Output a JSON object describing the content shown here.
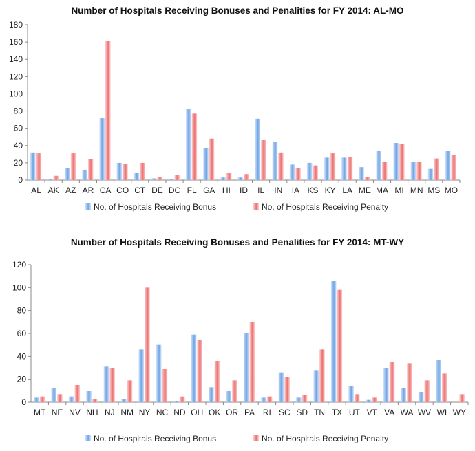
{
  "colors": {
    "bonus": "#6fa4e6",
    "penalty": "#ee6f6f",
    "axis": "#888888",
    "grid": "#d9d9d9"
  },
  "chart_data": [
    {
      "type": "bar",
      "title": "Number of Hospitals Receiving Bonuses and Penalities for FY 2014: AL-MO",
      "categories": [
        "AL",
        "AK",
        "AZ",
        "AR",
        "CA",
        "CO",
        "CT",
        "DE",
        "DC",
        "FL",
        "GA",
        "HI",
        "ID",
        "IL",
        "IN",
        "IA",
        "KS",
        "KY",
        "LA",
        "ME",
        "MA",
        "MI",
        "MN",
        "MS",
        "MO"
      ],
      "series": [
        {
          "name": "No. of Hospitals Receiving Bonus",
          "values": [
            32,
            1,
            14,
            12,
            72,
            20,
            8,
            2,
            1,
            82,
            37,
            3,
            3,
            71,
            44,
            18,
            20,
            26,
            26,
            15,
            34,
            43,
            21,
            13,
            34
          ]
        },
        {
          "name": "No. of Hospitals Receiving Penalty",
          "values": [
            31,
            5,
            31,
            24,
            161,
            19,
            20,
            4,
            6,
            77,
            48,
            8,
            7,
            47,
            32,
            14,
            17,
            31,
            27,
            4,
            21,
            42,
            21,
            25,
            29
          ]
        }
      ],
      "ylim": [
        0,
        180
      ],
      "yticks": [
        0,
        20,
        40,
        60,
        80,
        100,
        120,
        140,
        160,
        180
      ],
      "legend_position": "bottom"
    },
    {
      "type": "bar",
      "title": "Number of Hospitals Receiving Bonuses and Penalities for FY 2014: MT-WY",
      "categories": [
        "MT",
        "NE",
        "NV",
        "NH",
        "NJ",
        "NM",
        "NY",
        "NC",
        "ND",
        "OH",
        "OK",
        "OR",
        "PA",
        "RI",
        "SC",
        "SD",
        "TN",
        "TX",
        "UT",
        "VT",
        "VA",
        "WA",
        "WV",
        "WI",
        "WY"
      ],
      "series": [
        {
          "name": "No. of Hospitals Receiving Bonus",
          "values": [
            4,
            12,
            5,
            10,
            31,
            3,
            46,
            50,
            1,
            59,
            13,
            10,
            60,
            4,
            26,
            4,
            28,
            106,
            14,
            2,
            30,
            12,
            9,
            37,
            0
          ]
        },
        {
          "name": "No. of Hospitals Receiving Penalty",
          "values": [
            5,
            7,
            15,
            3,
            30,
            19,
            100,
            29,
            5,
            54,
            36,
            19,
            70,
            5,
            22,
            6,
            46,
            98,
            7,
            4,
            35,
            34,
            19,
            25,
            7
          ]
        }
      ],
      "ylim": [
        0,
        120
      ],
      "yticks": [
        0,
        20,
        40,
        60,
        80,
        100,
        120
      ],
      "legend_position": "bottom"
    }
  ]
}
